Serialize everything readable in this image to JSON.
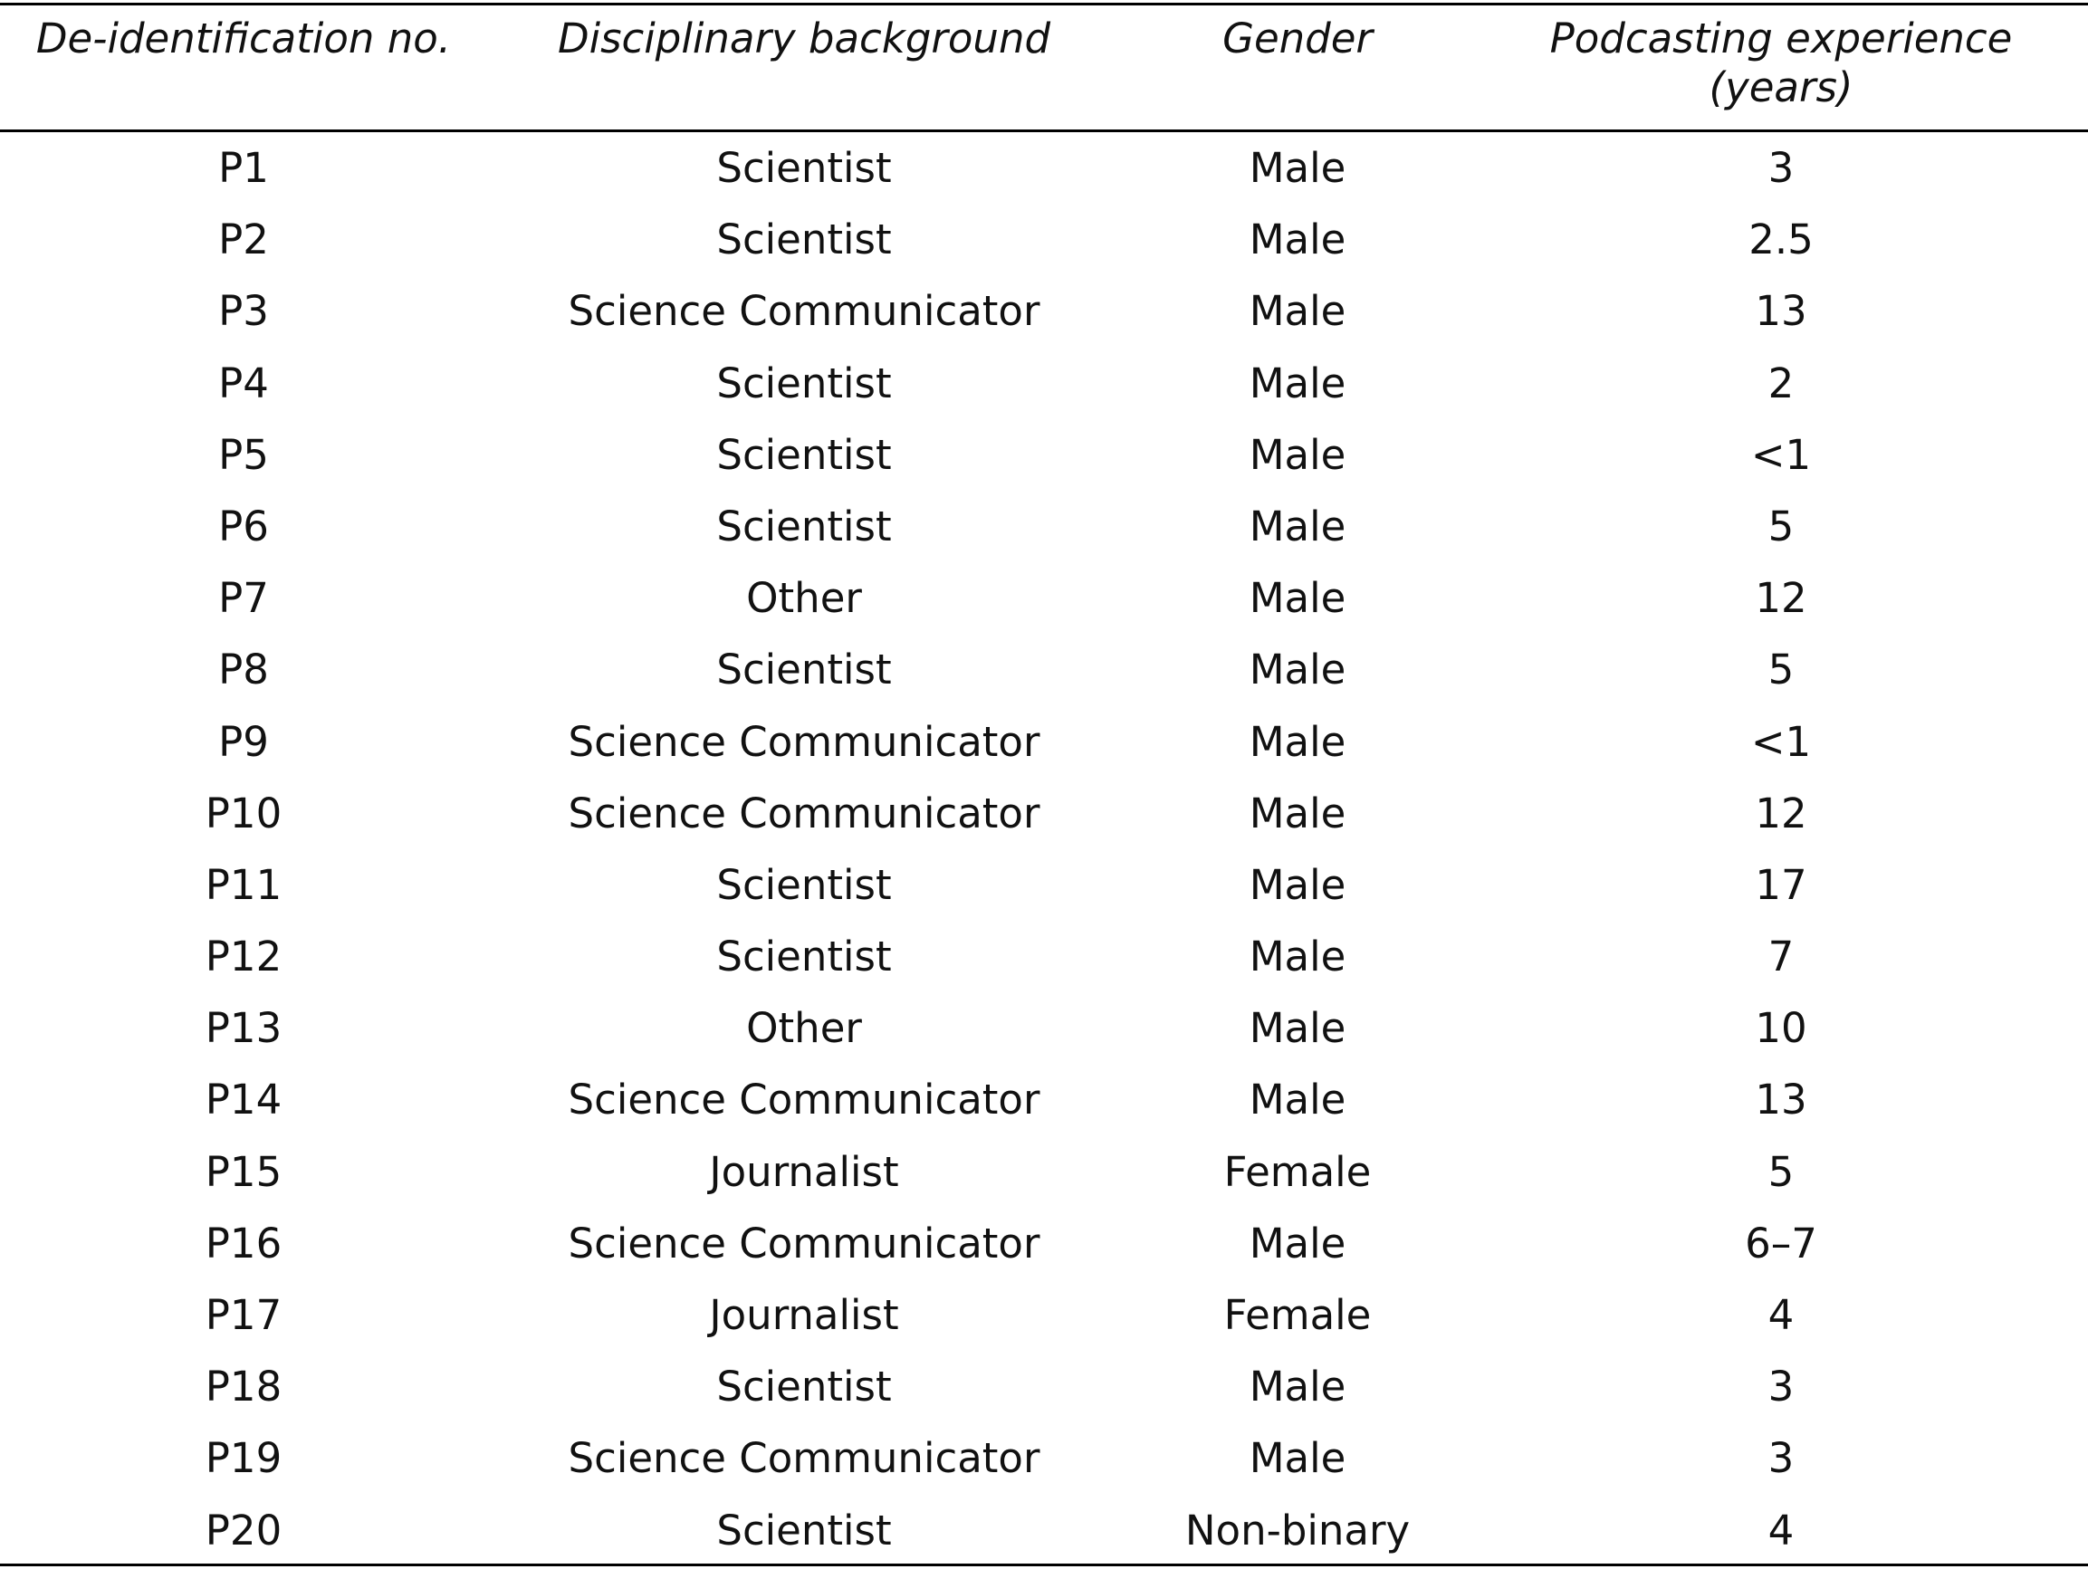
{
  "table": {
    "headers": [
      "De-identification no.",
      "Disciplinary background",
      "Gender",
      "Podcasting experience\n(years)"
    ],
    "rows": [
      [
        "P1",
        "Scientist",
        "Male",
        "3"
      ],
      [
        "P2",
        "Scientist",
        "Male",
        "2.5"
      ],
      [
        "P3",
        "Science Communicator",
        "Male",
        "13"
      ],
      [
        "P4",
        "Scientist",
        "Male",
        "2"
      ],
      [
        "P5",
        "Scientist",
        "Male",
        "<1"
      ],
      [
        "P6",
        "Scientist",
        "Male",
        "5"
      ],
      [
        "P7",
        "Other",
        "Male",
        "12"
      ],
      [
        "P8",
        "Scientist",
        "Male",
        "5"
      ],
      [
        "P9",
        "Science Communicator",
        "Male",
        "<1"
      ],
      [
        "P10",
        "Science Communicator",
        "Male",
        "12"
      ],
      [
        "P11",
        "Scientist",
        "Male",
        "17"
      ],
      [
        "P12",
        "Scientist",
        "Male",
        "7"
      ],
      [
        "P13",
        "Other",
        "Male",
        "10"
      ],
      [
        "P14",
        "Science Communicator",
        "Male",
        "13"
      ],
      [
        "P15",
        "Journalist",
        "Female",
        "5"
      ],
      [
        "P16",
        "Science Communicator",
        "Male",
        "6–7"
      ],
      [
        "P17",
        "Journalist",
        "Female",
        "4"
      ],
      [
        "P18",
        "Scientist",
        "Male",
        "3"
      ],
      [
        "P19",
        "Science Communicator",
        "Male",
        "3"
      ],
      [
        "P20",
        "Scientist",
        "Non-binary",
        "4"
      ]
    ]
  }
}
